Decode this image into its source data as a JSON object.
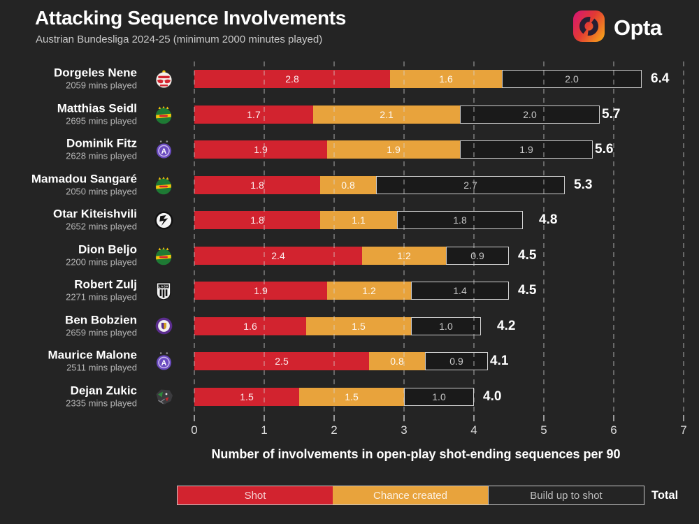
{
  "header": {
    "title": "Attacking Sequence Involvements",
    "subtitle": "Austrian Bundesliga 2024-25 (minimum 2000 minutes played)",
    "brand": "Opta"
  },
  "axis": {
    "label": "Number of involvements in open-play shot-ending sequences per 90",
    "ticks": [
      "0",
      "1",
      "2",
      "3",
      "4",
      "5",
      "6",
      "7"
    ],
    "min": 0,
    "max": 7
  },
  "legend": {
    "items": [
      {
        "label": "Shot",
        "style": "shot",
        "color": "#d2232f"
      },
      {
        "label": "Chance created",
        "style": "chance",
        "color": "#e8a33c"
      },
      {
        "label": "Build up to shot",
        "style": "build",
        "color": "outline-dark"
      }
    ],
    "total_label": "Total"
  },
  "chart_data": {
    "type": "bar",
    "stacked": true,
    "orientation": "horizontal",
    "x_range": [
      0,
      7
    ],
    "grid": "dashed-vertical",
    "series_names": [
      "Shot",
      "Chance created",
      "Build up to shot"
    ],
    "colors": {
      "shot": "#d2232f",
      "chance": "#e8a33c",
      "buildup_border": "#cfcfcf",
      "background": "#242424"
    },
    "players": [
      {
        "name": "Dorgeles Nene",
        "mins": "2059 mins played",
        "badge": "salzburg-badge",
        "values": [
          2.8,
          1.6,
          2.0
        ],
        "labels": [
          "2.8",
          "1.6",
          "2.0"
        ],
        "total": "6.4"
      },
      {
        "name": "Matthias Seidl",
        "mins": "2695 mins played",
        "badge": "rapid-badge",
        "values": [
          1.7,
          2.1,
          2.0
        ],
        "labels": [
          "1.7",
          "2.1",
          "2.0"
        ],
        "total": "5.7"
      },
      {
        "name": "Dominik Fitz",
        "mins": "2628 mins played",
        "badge": "austria-wien-badge",
        "values": [
          1.9,
          1.9,
          1.9
        ],
        "labels": [
          "1.9",
          "1.9",
          "1.9"
        ],
        "total": "5.6"
      },
      {
        "name": "Mamadou Sangaré",
        "mins": "2050 mins played",
        "badge": "rapid-badge",
        "values": [
          1.8,
          0.8,
          2.7
        ],
        "labels": [
          "1.8",
          "0.8",
          "2.7"
        ],
        "total": "5.3"
      },
      {
        "name": "Otar Kiteishvili",
        "mins": "2652 mins played",
        "badge": "sturm-graz-badge",
        "values": [
          1.8,
          1.1,
          1.8
        ],
        "labels": [
          "1.8",
          "1.1",
          "1.8"
        ],
        "total": "4.8"
      },
      {
        "name": "Dion Beljo",
        "mins": "2200 mins played",
        "badge": "rapid-badge",
        "values": [
          2.4,
          1.2,
          0.9
        ],
        "labels": [
          "2.4",
          "1.2",
          "0.9"
        ],
        "total": "4.5"
      },
      {
        "name": "Robert Zulj",
        "mins": "2271 mins played",
        "badge": "lask-badge",
        "values": [
          1.9,
          1.2,
          1.4
        ],
        "labels": [
          "1.9",
          "1.2",
          "1.4"
        ],
        "total": "4.5"
      },
      {
        "name": "Ben Bobzien",
        "mins": "2659 mins played",
        "badge": "klagenfurt-badge",
        "values": [
          1.6,
          1.5,
          1.0
        ],
        "labels": [
          "1.6",
          "1.5",
          "1.0"
        ],
        "total": "4.2"
      },
      {
        "name": "Maurice Malone",
        "mins": "2511 mins played",
        "badge": "austria-wien-badge",
        "values": [
          2.5,
          0.8,
          0.9
        ],
        "labels": [
          "2.5",
          "0.8",
          "0.9"
        ],
        "total": "4.1"
      },
      {
        "name": "Dejan Zukic",
        "mins": "2335 mins played",
        "badge": "wac-badge",
        "values": [
          1.5,
          1.5,
          1.0
        ],
        "labels": [
          "1.5",
          "1.5",
          "1.0"
        ],
        "total": "4.0"
      }
    ]
  }
}
